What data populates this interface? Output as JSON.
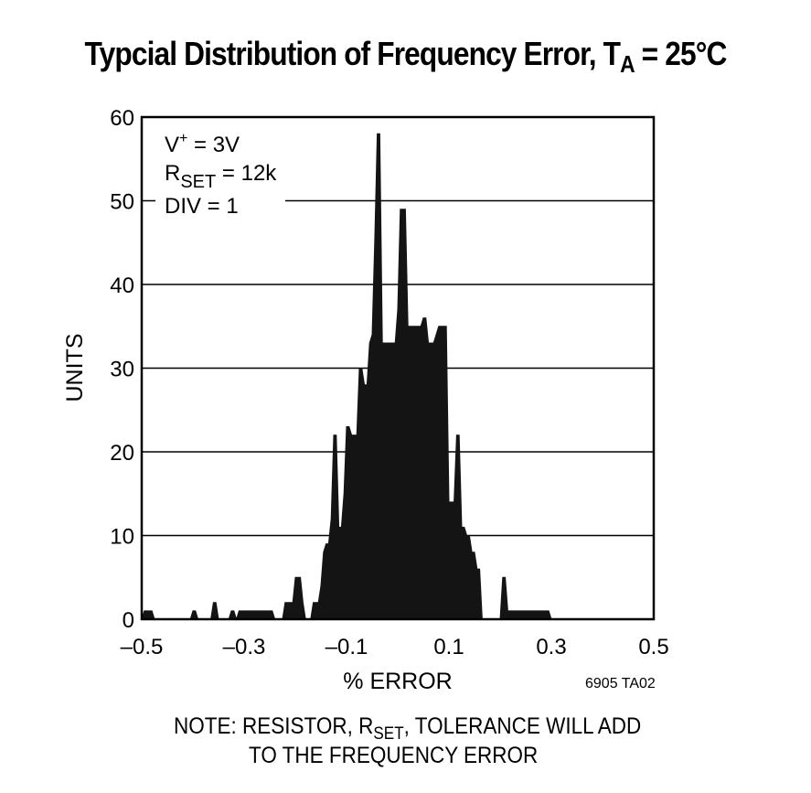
{
  "title": {
    "main": "Typcial Distribution of Frequency Error, T",
    "subscript": "A",
    "suffix": " = 25°C"
  },
  "note": {
    "line1_pre": "NOTE: RESISTOR, R",
    "line1_sub": "SET",
    "line1_post": ", TOLERANCE WILL ADD",
    "line2": "TO THE FREQUENCY ERROR"
  },
  "chart_data": {
    "type": "area",
    "xlabel": "% ERROR",
    "ylabel": "UNITS",
    "xlim": [
      -0.5,
      0.5
    ],
    "ylim": [
      0,
      60
    ],
    "xticks": [
      "–0.5",
      "–0.3",
      "–0.1",
      "0.1",
      "0.3",
      "0.5"
    ],
    "xtick_values": [
      -0.5,
      -0.3,
      -0.1,
      0.1,
      0.3,
      0.5
    ],
    "yticks": [
      "0",
      "10",
      "20",
      "30",
      "40",
      "50",
      "60"
    ],
    "ytick_values": [
      0,
      10,
      20,
      30,
      40,
      50,
      60
    ],
    "grid": "horizontal",
    "annotation": {
      "line1_pre": "V",
      "line1_sup": "+",
      "line1_post": " = 3V",
      "line2_pre": "R",
      "line2_sub": "SET",
      "line2_post": " = 12k",
      "line3": "DIV = 1"
    },
    "figure_code": "6905 TA02",
    "x": [
      -0.5,
      -0.495,
      -0.49,
      -0.485,
      -0.48,
      -0.475,
      -0.44,
      -0.405,
      -0.4,
      -0.395,
      -0.39,
      -0.365,
      -0.36,
      -0.355,
      -0.35,
      -0.33,
      -0.325,
      -0.32,
      -0.315,
      -0.31,
      -0.285,
      -0.28,
      -0.245,
      -0.24,
      -0.225,
      -0.22,
      -0.215,
      -0.205,
      -0.2,
      -0.19,
      -0.185,
      -0.18,
      -0.175,
      -0.17,
      -0.165,
      -0.16,
      -0.155,
      -0.15,
      -0.145,
      -0.14,
      -0.135,
      -0.13,
      -0.125,
      -0.12,
      -0.115,
      -0.11,
      -0.105,
      -0.1,
      -0.095,
      -0.09,
      -0.08,
      -0.075,
      -0.07,
      -0.065,
      -0.06,
      -0.055,
      -0.05,
      -0.045,
      -0.04,
      -0.035,
      -0.03,
      -0.025,
      -0.02,
      -0.015,
      -0.01,
      -0.005,
      0.0,
      0.005,
      0.01,
      0.015,
      0.02,
      0.025,
      0.03,
      0.035,
      0.04,
      0.045,
      0.05,
      0.055,
      0.06,
      0.065,
      0.07,
      0.075,
      0.08,
      0.085,
      0.09,
      0.095,
      0.1,
      0.105,
      0.11,
      0.115,
      0.12,
      0.125,
      0.13,
      0.135,
      0.14,
      0.145,
      0.15,
      0.155,
      0.16,
      0.165,
      0.17,
      0.175,
      0.18,
      0.185,
      0.19,
      0.195,
      0.2,
      0.205,
      0.21,
      0.215,
      0.22,
      0.225,
      0.23,
      0.235,
      0.24,
      0.245,
      0.25,
      0.285,
      0.29,
      0.295,
      0.3
    ],
    "y": [
      0,
      1,
      1,
      1,
      1,
      0,
      0,
      0,
      1,
      1,
      0,
      0,
      2,
      2,
      0,
      0,
      1,
      1,
      0,
      1,
      1,
      1,
      1,
      0,
      0,
      2,
      2,
      2,
      5,
      5,
      2,
      0,
      0,
      0,
      2,
      2,
      2,
      4,
      8,
      9,
      9,
      12,
      22,
      22,
      11,
      11,
      15,
      23,
      23,
      22,
      22,
      30,
      30,
      28,
      28,
      33,
      34,
      45,
      58,
      58,
      33,
      33,
      33,
      33,
      33,
      33,
      37,
      49,
      49,
      49,
      35,
      35,
      35,
      35,
      35,
      35,
      36,
      36,
      33,
      33,
      33,
      34,
      35,
      35,
      35,
      35,
      14,
      14,
      14,
      22,
      22,
      11,
      11,
      10,
      10,
      8,
      8,
      6,
      6,
      0,
      0,
      0,
      0,
      0,
      0,
      0,
      0,
      5,
      5,
      1,
      1,
      1,
      1,
      1,
      1,
      1,
      1,
      1,
      1,
      1,
      0
    ]
  }
}
